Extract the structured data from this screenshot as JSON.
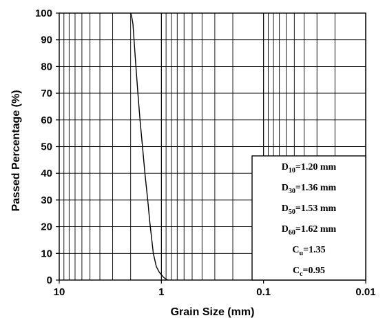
{
  "chart_data": {
    "type": "line",
    "title": "",
    "xlabel": "Grain Size (mm)",
    "ylabel": "Passed  Percentage (%)",
    "x_scale": "log",
    "x_reversed": true,
    "xlim": [
      10,
      0.01
    ],
    "ylim": [
      0,
      100
    ],
    "grid": true,
    "x_ticks": [
      10,
      1,
      0.1,
      0.01
    ],
    "x_tick_labels": [
      "10",
      "1",
      "0.1",
      "0.01"
    ],
    "y_ticks": [
      0,
      10,
      20,
      30,
      40,
      50,
      60,
      70,
      80,
      90,
      100
    ],
    "y_tick_labels": [
      "0",
      "10",
      "20",
      "30",
      "40",
      "50",
      "60",
      "70",
      "80",
      "90",
      "100"
    ],
    "series": [
      {
        "x": [
          2.0,
          1.96,
          1.9,
          1.8,
          1.7,
          1.62,
          1.53,
          1.45,
          1.36,
          1.3,
          1.2,
          1.12,
          1.05,
          1.0,
          0.95,
          0.9,
          0.86
        ],
        "y": [
          100,
          99,
          96,
          83,
          70,
          60,
          50,
          40,
          30,
          22,
          10,
          5,
          3,
          2,
          1,
          0.3,
          0
        ]
      }
    ],
    "legend_placement": "bottom-right",
    "annotation_box": [
      {
        "main": "D",
        "sub": "10",
        "rest": "=1.20 mm"
      },
      {
        "main": "D",
        "sub": "30",
        "rest": "=1.36 mm"
      },
      {
        "main": "D",
        "sub": "50",
        "rest": "=1.53 mm"
      },
      {
        "main": "D",
        "sub": "60",
        "rest": "=1.62 mm"
      },
      {
        "main": "C",
        "sub": "u",
        "rest": "=1.35"
      },
      {
        "main": "C",
        "sub": "c",
        "rest": "=0.95"
      }
    ],
    "colors": {
      "line": "#000000",
      "grid": "#000000",
      "background": "#ffffff"
    }
  }
}
